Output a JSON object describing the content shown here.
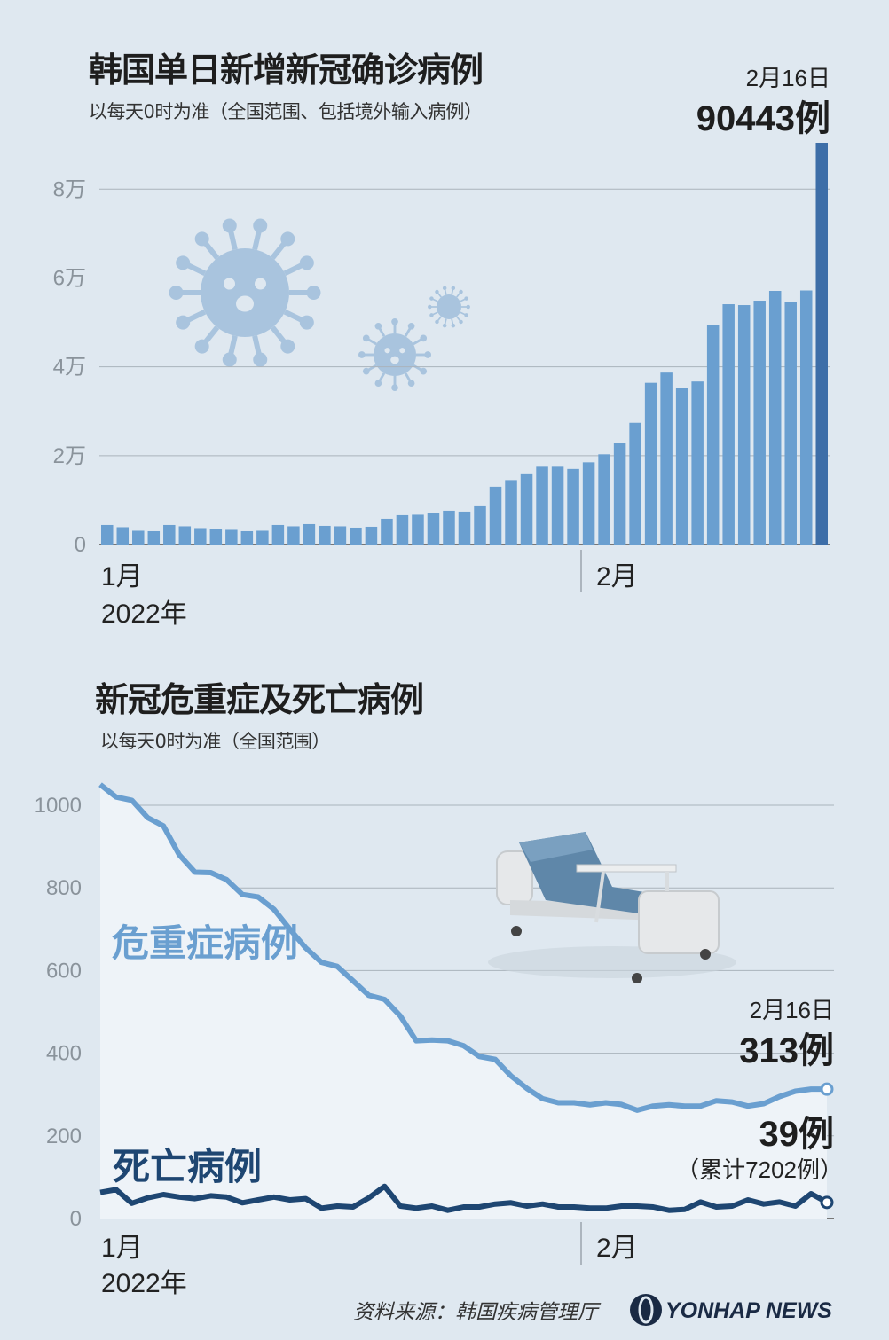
{
  "chart_data": [
    {
      "type": "bar",
      "title": "韩国单日新增新冠确诊病例",
      "subtitle": "以每天0时为准（全国范围、包括境外输入病例）",
      "y_ticks": [
        "0",
        "2万",
        "4万",
        "6万",
        "8万"
      ],
      "y_tick_values": [
        0,
        20000,
        40000,
        60000,
        80000
      ],
      "ylim": [
        0,
        90443
      ],
      "x_labels": {
        "month1": "1月",
        "year": "2022年",
        "month2": "2月"
      },
      "highlight": {
        "date": "2月16日",
        "value_label": "90443例",
        "value": 90443
      },
      "values": [
        4400,
        3900,
        3100,
        3000,
        4400,
        4100,
        3700,
        3500,
        3300,
        3000,
        3100,
        4400,
        4100,
        4600,
        4200,
        4100,
        3800,
        4000,
        5800,
        6600,
        6700,
        7000,
        7600,
        7400,
        8600,
        13000,
        14500,
        16000,
        17500,
        17500,
        17000,
        18500,
        20300,
        22900,
        27400,
        36400,
        38700,
        35300,
        36700,
        49500,
        54100,
        53900,
        54900,
        57100,
        54600,
        57200,
        90443
      ],
      "colors": {
        "bar": "#6a9fd0",
        "highlight": "#3d6ea8"
      }
    },
    {
      "type": "line",
      "title": "新冠危重症及死亡病例",
      "subtitle": "以每天0时为准（全国范围）",
      "y_ticks": [
        "0",
        "200",
        "400",
        "600",
        "800",
        "1000"
      ],
      "y_tick_values": [
        0,
        200,
        400,
        600,
        800,
        1000
      ],
      "ylim": [
        0,
        1000
      ],
      "x_labels": {
        "month1": "1月",
        "year": "2022年",
        "month2": "2月"
      },
      "series": [
        {
          "name": "危重症病例",
          "color": "#6a9fd0",
          "values": [
            1050,
            1020,
            1012,
            970,
            950,
            880,
            838,
            837,
            820,
            784,
            778,
            748,
            700,
            655,
            620,
            610,
            575,
            540,
            530,
            490,
            430,
            432,
            430,
            418,
            392,
            385,
            345,
            315,
            290,
            280,
            280,
            275,
            280,
            276,
            262,
            272,
            275,
            272,
            272,
            285,
            282,
            272,
            278,
            295,
            308,
            313,
            313
          ],
          "end_label": {
            "date": "2月16日",
            "value_label": "313例"
          }
        },
        {
          "name": "死亡病例",
          "color": "#1e4672",
          "values": [
            63,
            70,
            37,
            50,
            58,
            52,
            48,
            55,
            52,
            38,
            45,
            52,
            45,
            48,
            25,
            30,
            28,
            50,
            78,
            30,
            25,
            30,
            20,
            28,
            28,
            35,
            38,
            30,
            35,
            28,
            28,
            25,
            25,
            30,
            30,
            28,
            20,
            22,
            40,
            28,
            30,
            45,
            35,
            40,
            30,
            60,
            39
          ],
          "end_label": {
            "value_label": "39例",
            "note": "（累计7202例）"
          }
        }
      ]
    }
  ],
  "footer": {
    "source": "资料来源：韩国疾病管理厅",
    "logo": "YONHAP NEWS"
  }
}
